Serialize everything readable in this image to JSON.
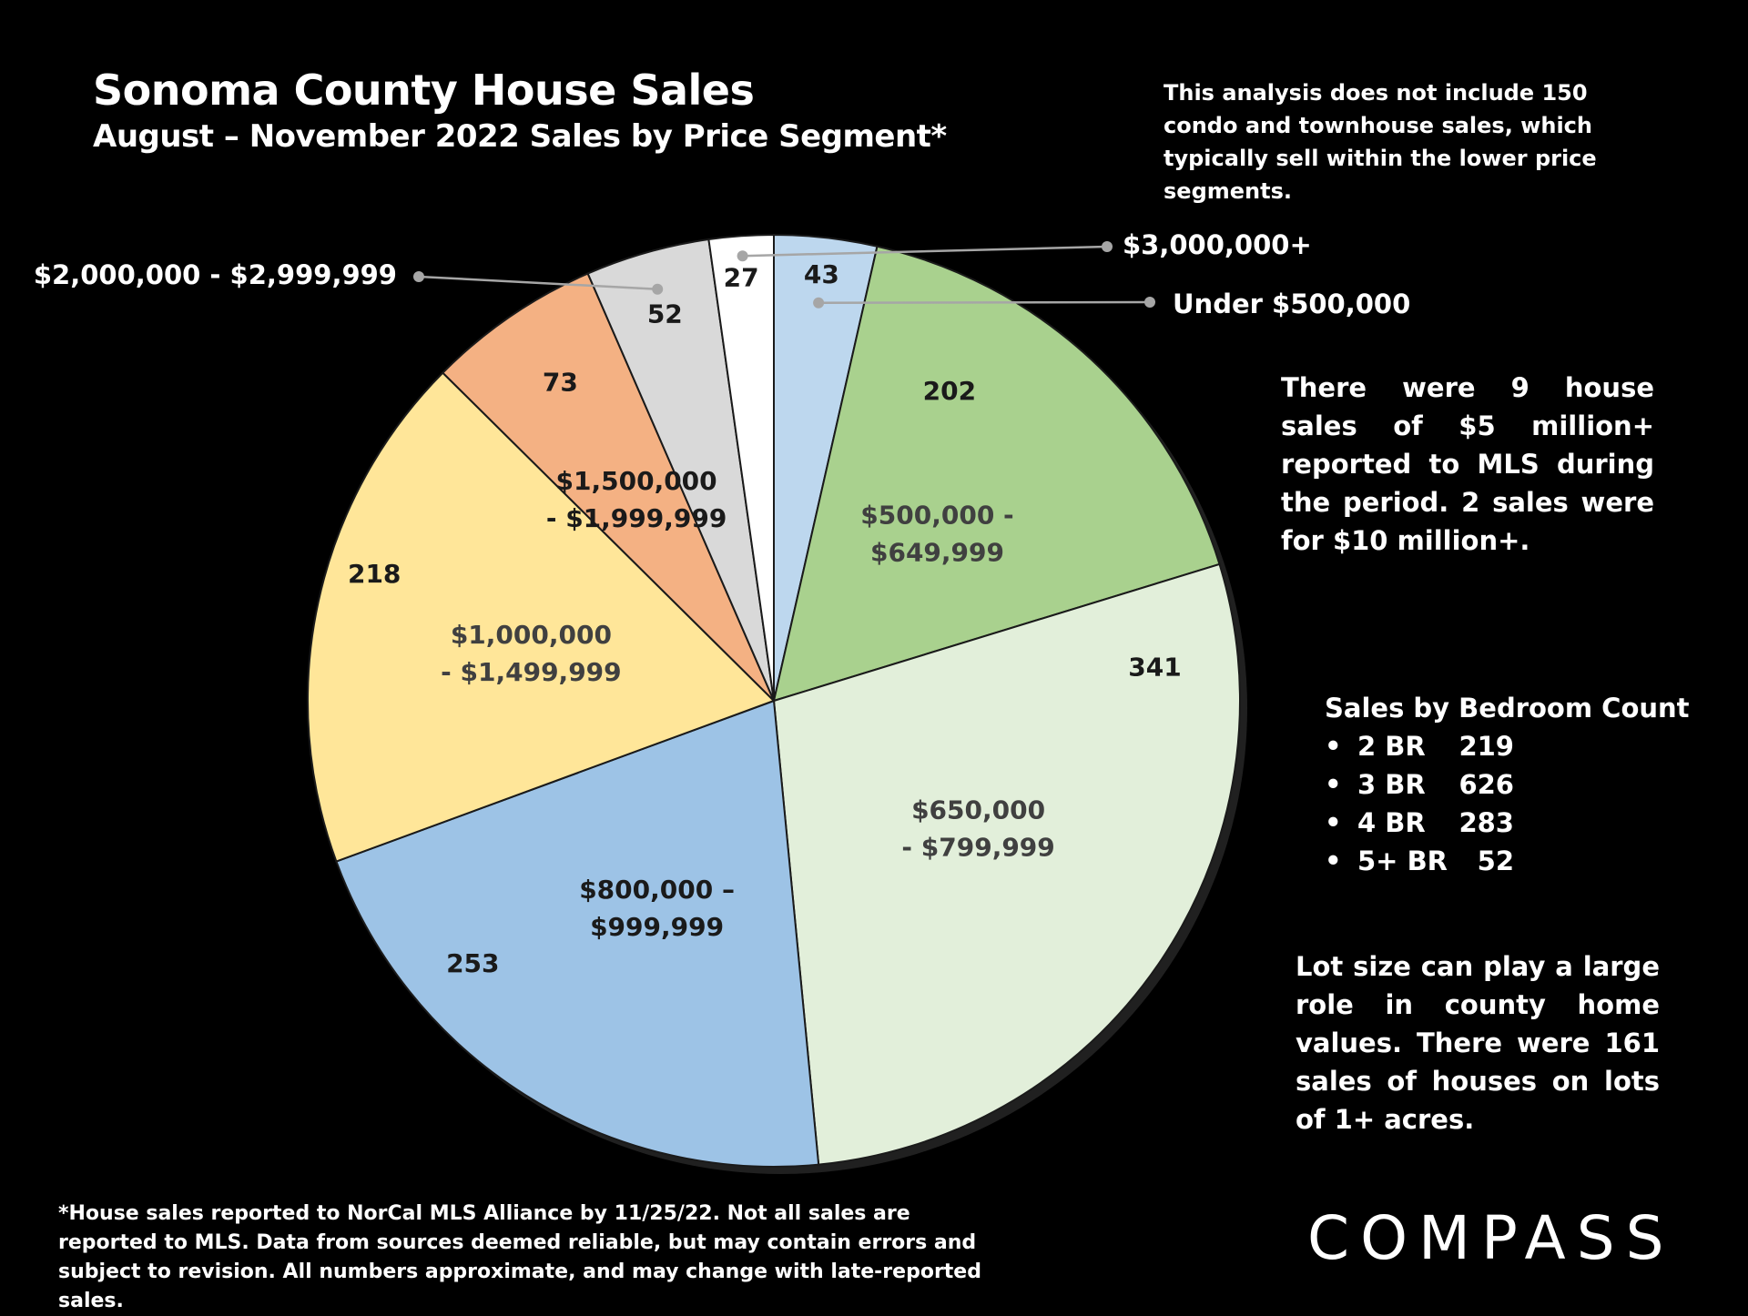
{
  "header": {
    "title": "Sonoma County House Sales",
    "subtitle": "August – November 2022 Sales by Price Segment*"
  },
  "notes": {
    "condo": "This analysis does not include 150 condo and townhouse sales, which typically sell within the lower price segments.",
    "five_million": "There were 9 house sales of $5 million+ reported to MLS during the period. 2 sales were for $10 million+.",
    "lot_size": "Lot size can play a large role in county home values. There were 161 sales of houses on lots of 1+ acres."
  },
  "bedrooms": {
    "title": "Sales by Bedroom Count",
    "bullet": "•",
    "items": [
      {
        "label": "2 BR",
        "count": "219"
      },
      {
        "label": "3 BR",
        "count": "626"
      },
      {
        "label": "4 BR",
        "count": "283"
      },
      {
        "label": "5+ BR",
        "count": "52"
      }
    ]
  },
  "footnote": "*House sales reported to NorCal MLS Alliance by 11/25/22. Not all sales are reported to MLS. Data from sources deemed reliable, but may contain errors and subject to revision. All numbers approximate, and may change with late-reported sales.",
  "logo": "COMPASS",
  "colors": {
    "background": "#000000",
    "text": "#ffffff",
    "slice_text": "#1a1a1a",
    "leader": "#a6a6a6"
  },
  "chart_data": {
    "type": "pie",
    "start_angle_deg": 0,
    "direction": "clockwise",
    "slices": [
      {
        "label": "Under $500,000",
        "label_lines": [],
        "value": 43,
        "color": "#bdd7ee"
      },
      {
        "label": "$500,000 - $649,999",
        "label_lines": [
          "$500,000 -",
          "$649,999"
        ],
        "value": 202,
        "color": "#a9d18e"
      },
      {
        "label": "$650,000 - $799,999",
        "label_lines": [
          "$650,000",
          "- $799,999"
        ],
        "value": 341,
        "color": "#e2efda"
      },
      {
        "label": "$800,000 – $999,999",
        "label_lines": [
          "$800,000 –",
          "$999,999"
        ],
        "value": 253,
        "color": "#9dc3e6"
      },
      {
        "label": "$1,000,000 - $1,499,999",
        "label_lines": [
          "$1,000,000",
          "- $1,499,999"
        ],
        "value": 218,
        "color": "#ffe699"
      },
      {
        "label": "$1,500,000 - $1,999,999",
        "label_lines": [
          "$1,500,000",
          "- $1,999,999"
        ],
        "value": 73,
        "color": "#f4b183"
      },
      {
        "label": "$2,000,000 - $2,999,999",
        "label_lines": [],
        "value": 52,
        "color": "#d9d9d9"
      },
      {
        "label": "$3,000,000+",
        "label_lines": [],
        "value": 27,
        "color": "#ffffff"
      }
    ],
    "callouts": [
      "$3,000,000+",
      "Under $500,000",
      "$2,000,000 - $2,999,999"
    ]
  }
}
